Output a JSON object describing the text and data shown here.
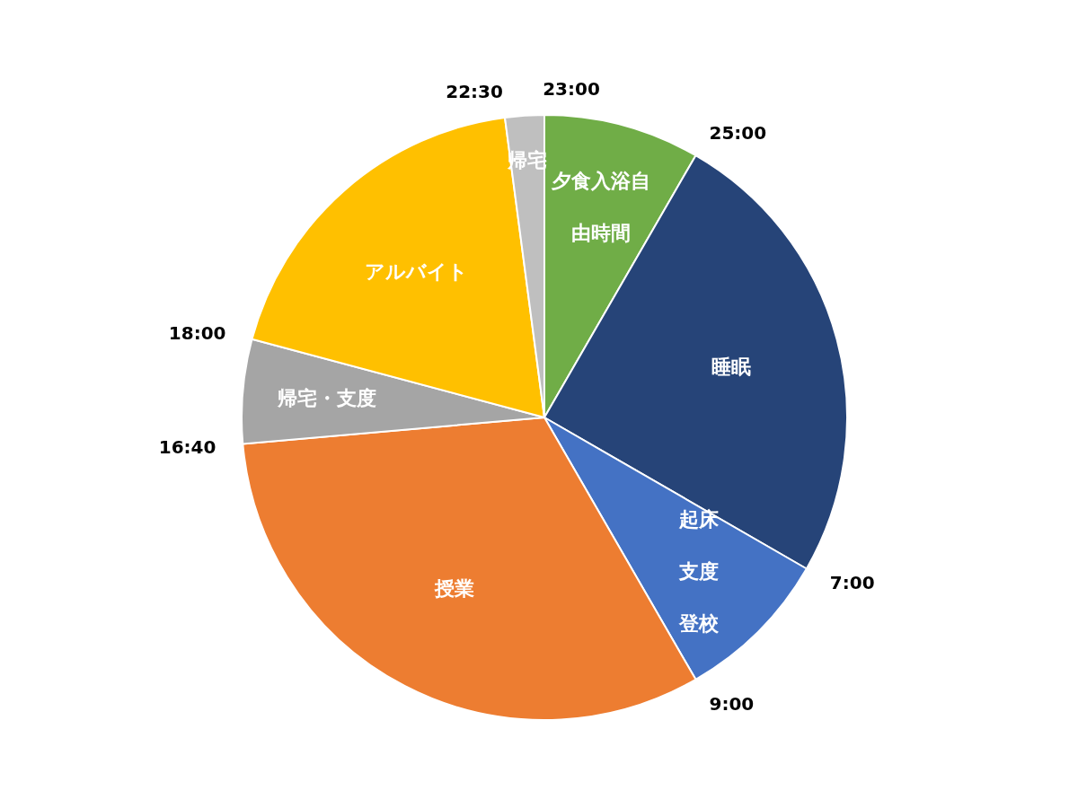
{
  "chart_data": {
    "type": "pie",
    "categories": [
      "夕食入浴自由時間",
      "睡眠",
      "起床支度登校",
      "授業",
      "帰宅・支度",
      "アルバイト",
      "帰宅"
    ],
    "values": [
      8.333,
      25,
      8.333,
      31.944,
      5.556,
      18.75,
      2.084
    ],
    "colors": [
      "#70ad47",
      "#264478",
      "#4472c4",
      "#ed7d31",
      "#a5a5a5",
      "#ffc000",
      "#bfbfbf"
    ],
    "annotations": [
      "23:00",
      "25:00",
      "7:00",
      "9:00",
      "16:40",
      "18:00",
      "22:30"
    ]
  }
}
